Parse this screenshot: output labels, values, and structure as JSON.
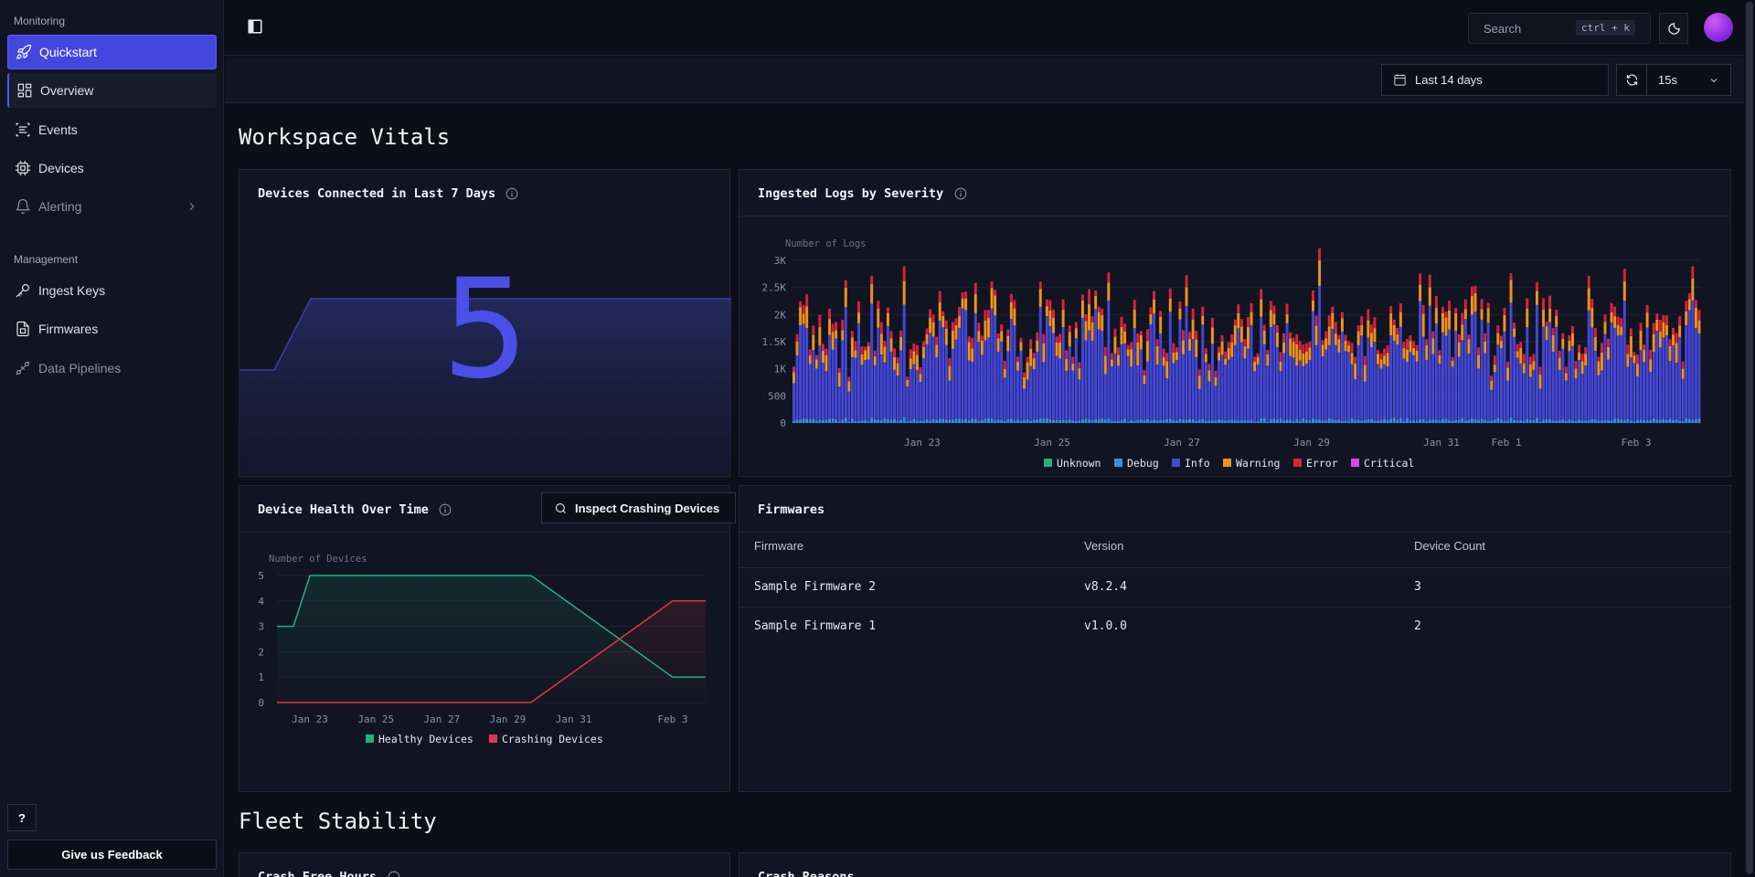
{
  "sidebar": {
    "monitoring_label": "Monitoring",
    "management_label": "Management",
    "items": [
      {
        "label": "Quickstart",
        "icon": "rocket-icon"
      },
      {
        "label": "Overview",
        "icon": "grid-icon"
      },
      {
        "label": "Events",
        "icon": "list-icon"
      },
      {
        "label": "Devices",
        "icon": "chip-icon"
      },
      {
        "label": "Alerting",
        "icon": "bell-icon"
      },
      {
        "label": "Ingest Keys",
        "icon": "key-icon"
      },
      {
        "label": "Firmwares",
        "icon": "file-icon"
      },
      {
        "label": "Data Pipelines",
        "icon": "pipeline-icon"
      }
    ],
    "help_label": "?",
    "feedback_label": "Give us Feedback"
  },
  "topbar": {
    "search_placeholder": "Search",
    "search_shortcut": "ctrl + k"
  },
  "toolbar": {
    "date_range": "Last 14 days",
    "refresh_interval": "15s"
  },
  "sections": {
    "vitals_title": "Workspace Vitals",
    "stability_title": "Fleet Stability"
  },
  "cards": {
    "devices_connected": {
      "title": "Devices Connected in Last 7 Days",
      "value": "5",
      "sparkline": [
        1,
        1,
        2,
        2,
        2,
        2,
        2,
        2,
        2,
        2,
        2,
        2,
        2,
        2,
        2
      ]
    },
    "ingested_logs": {
      "title": "Ingested Logs by Severity"
    },
    "device_health": {
      "title": "Device Health Over Time",
      "button_label": "Inspect Crashing Devices"
    },
    "firmwares": {
      "title": "Firmwares",
      "columns": [
        "Firmware",
        "Version",
        "Device Count"
      ],
      "rows": [
        {
          "firmware": "Sample Firmware 2",
          "version": "v8.2.4",
          "count": "3"
        },
        {
          "firmware": "Sample Firmware 1",
          "version": "v1.0.0",
          "count": "2"
        }
      ]
    },
    "crash_free_hours": {
      "title": "Crash Free Hours"
    },
    "crash_reasons": {
      "title": "Crash Reasons"
    }
  },
  "chart_data": [
    {
      "type": "bar",
      "stacked": true,
      "ylabel": "Number of Logs",
      "ylim": [
        0,
        3000
      ],
      "yticks": [
        "0",
        "500",
        "1K",
        "1.5K",
        "2K",
        "2.5K",
        "3K"
      ],
      "xticks": [
        "Jan 23",
        "Jan 25",
        "Jan 27",
        "Jan 29",
        "Jan 31",
        "Feb 1",
        "Feb 3"
      ],
      "xtick_days": [
        2,
        4,
        6,
        8,
        10,
        11,
        13
      ],
      "x_span_days": 14,
      "bar_count": 280,
      "series": [
        {
          "name": "Unknown",
          "color": "#22b07d",
          "mean": 0
        },
        {
          "name": "Debug",
          "color": "#3a8ee0",
          "mean": 60
        },
        {
          "name": "Info",
          "color": "#4447d8",
          "mean": 1300
        },
        {
          "name": "Warning",
          "color": "#f0921e",
          "mean": 250
        },
        {
          "name": "Error",
          "color": "#d9223c",
          "mean": 140
        },
        {
          "name": "Critical",
          "color": "#e044e8",
          "mean": 0
        }
      ],
      "legend": "bottom"
    },
    {
      "type": "line",
      "ylabel": "Number of Devices",
      "ylim": [
        0,
        5
      ],
      "yticks": [
        "0",
        "1",
        "2",
        "3",
        "4",
        "5"
      ],
      "xticks": [
        "Jan 23",
        "Jan 25",
        "Jan 27",
        "Jan 29",
        "Jan 31",
        "Feb 3"
      ],
      "xtick_days": [
        2,
        4,
        6,
        8,
        10,
        13
      ],
      "x_span_days": 14,
      "series": [
        {
          "name": "Healthy Devices",
          "color": "#22b07d",
          "points": [
            [
              1,
              3
            ],
            [
              1.5,
              3
            ],
            [
              2,
              5
            ],
            [
              8.7,
              5
            ],
            [
              13,
              1
            ],
            [
              14,
              1
            ]
          ]
        },
        {
          "name": "Crashing Devices",
          "color": "#e0344c",
          "points": [
            [
              1,
              0
            ],
            [
              8.7,
              0
            ],
            [
              13,
              4
            ],
            [
              14,
              4
            ]
          ]
        }
      ],
      "legend": "bottom"
    }
  ]
}
